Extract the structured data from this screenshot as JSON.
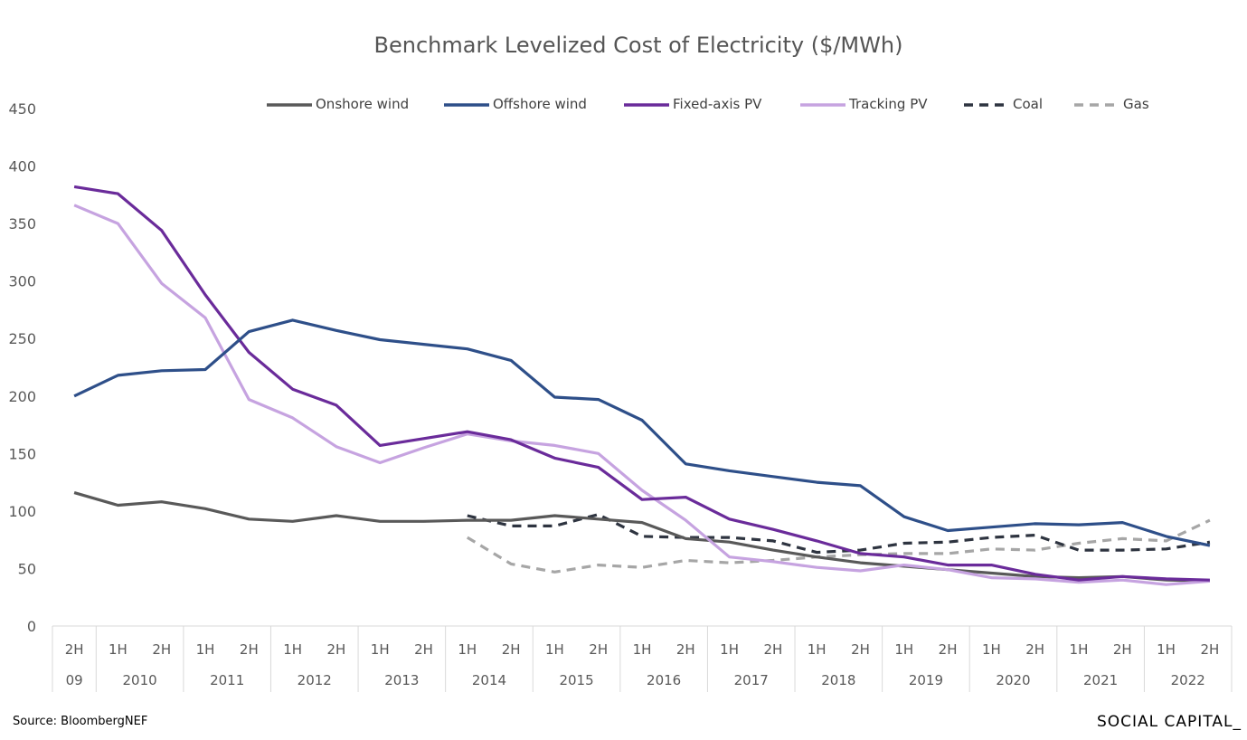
{
  "source": "Source: BloombergNEF",
  "brand": "SOCIAL CAPITAL_",
  "chart_data": {
    "type": "line",
    "title": "Benchmark Levelized Cost of Electricity ($/MWh)",
    "ylim": [
      0,
      450
    ],
    "yticks": [
      0,
      50,
      100,
      150,
      200,
      250,
      300,
      350,
      400,
      450
    ],
    "x_halves": [
      "2H",
      "1H",
      "2H",
      "1H",
      "2H",
      "1H",
      "2H",
      "1H",
      "2H",
      "1H",
      "2H",
      "1H",
      "2H",
      "1H",
      "2H",
      "1H",
      "2H",
      "1H",
      "2H",
      "1H",
      "2H",
      "1H",
      "2H",
      "1H",
      "2H",
      "1H",
      "2H"
    ],
    "x_years": [
      {
        "label": "09",
        "start": 0,
        "span": 1
      },
      {
        "label": "2010",
        "start": 1,
        "span": 2
      },
      {
        "label": "2011",
        "start": 3,
        "span": 2
      },
      {
        "label": "2012",
        "start": 5,
        "span": 2
      },
      {
        "label": "2013",
        "start": 7,
        "span": 2
      },
      {
        "label": "2014",
        "start": 9,
        "span": 2
      },
      {
        "label": "2015",
        "start": 11,
        "span": 2
      },
      {
        "label": "2016",
        "start": 13,
        "span": 2
      },
      {
        "label": "2017",
        "start": 15,
        "span": 2
      },
      {
        "label": "2018",
        "start": 17,
        "span": 2
      },
      {
        "label": "2019",
        "start": 19,
        "span": 2
      },
      {
        "label": "2020",
        "start": 21,
        "span": 2
      },
      {
        "label": "2021",
        "start": 23,
        "span": 2
      },
      {
        "label": "2022",
        "start": 25,
        "span": 2
      }
    ],
    "grid": false,
    "legend_position": "top",
    "series": [
      {
        "name": "Onshore wind",
        "color": "#595959",
        "dash": false,
        "values": [
          116,
          105,
          108,
          102,
          93,
          91,
          96,
          91,
          91,
          92,
          92,
          96,
          93,
          90,
          76,
          73,
          66,
          60,
          55,
          52,
          49,
          46,
          43,
          42,
          43,
          40,
          39
        ]
      },
      {
        "name": "Offshore wind",
        "color": "#2e4f89",
        "dash": false,
        "values": [
          200,
          218,
          222,
          223,
          256,
          266,
          257,
          249,
          245,
          241,
          231,
          199,
          197,
          179,
          141,
          135,
          130,
          125,
          122,
          95,
          83,
          86,
          89,
          88,
          90,
          78,
          70
        ]
      },
      {
        "name": "Fixed-axis PV",
        "color": "#6a2b9a",
        "dash": false,
        "values": [
          382,
          376,
          344,
          288,
          238,
          206,
          192,
          157,
          163,
          169,
          162,
          146,
          138,
          110,
          112,
          93,
          84,
          74,
          63,
          60,
          53,
          53,
          45,
          40,
          43,
          41,
          40
        ]
      },
      {
        "name": "Tracking PV",
        "color": "#c6a3e0",
        "dash": false,
        "values": [
          366,
          350,
          298,
          268,
          197,
          181,
          156,
          142,
          155,
          167,
          161,
          157,
          150,
          118,
          92,
          60,
          56,
          51,
          48,
          53,
          49,
          42,
          41,
          38,
          40,
          36,
          39
        ]
      },
      {
        "name": "Coal",
        "color": "#2e3440",
        "dash": true,
        "values": [
          null,
          null,
          null,
          null,
          null,
          null,
          null,
          null,
          null,
          96,
          87,
          87,
          97,
          78,
          77,
          77,
          74,
          64,
          66,
          72,
          73,
          77,
          79,
          66,
          66,
          67,
          73
        ]
      },
      {
        "name": "Gas",
        "color": "#a6a6a6",
        "dash": true,
        "values": [
          null,
          null,
          null,
          null,
          null,
          null,
          null,
          null,
          null,
          77,
          54,
          47,
          53,
          51,
          57,
          55,
          57,
          60,
          62,
          63,
          63,
          67,
          66,
          72,
          76,
          74,
          92
        ]
      }
    ]
  }
}
